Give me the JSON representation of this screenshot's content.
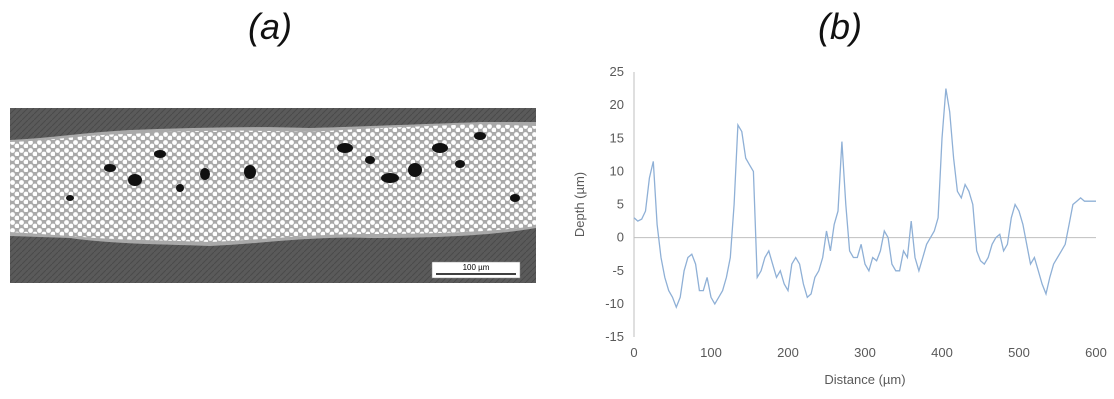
{
  "panels": {
    "a": {
      "label": "(a)",
      "scale_bar_text": "100 µm"
    },
    "b": {
      "label": "(b)"
    }
  },
  "colors": {
    "line": "#8fb0d6",
    "axis": "#bfbfbf",
    "tick_text": "#595959",
    "substrate": "#5a5a5a",
    "matrix": "#a9a9a9",
    "fiber": "#ffffff",
    "void": "#111111"
  },
  "chart_data": {
    "type": "line",
    "title": "",
    "xlabel": "Distance (µm)",
    "ylabel": "Depth (µm)",
    "xlim": [
      0,
      600
    ],
    "ylim": [
      -15,
      25
    ],
    "xticks": [
      0,
      100,
      200,
      300,
      400,
      500,
      600
    ],
    "yticks": [
      -15,
      -10,
      -5,
      0,
      5,
      10,
      15,
      20,
      25
    ],
    "grid": false,
    "legend": "none",
    "x": [
      0,
      5,
      10,
      15,
      20,
      25,
      30,
      35,
      40,
      45,
      50,
      55,
      60,
      65,
      70,
      75,
      80,
      85,
      90,
      95,
      100,
      105,
      110,
      115,
      120,
      125,
      130,
      135,
      140,
      145,
      150,
      155,
      160,
      165,
      170,
      175,
      180,
      185,
      190,
      195,
      200,
      205,
      210,
      215,
      220,
      225,
      230,
      235,
      240,
      245,
      250,
      255,
      260,
      265,
      270,
      275,
      280,
      285,
      290,
      295,
      300,
      305,
      310,
      315,
      320,
      325,
      330,
      335,
      340,
      345,
      350,
      355,
      360,
      365,
      370,
      375,
      380,
      385,
      390,
      395,
      400,
      405,
      410,
      415,
      420,
      425,
      430,
      435,
      440,
      445,
      450,
      455,
      460,
      465,
      470,
      475,
      480,
      485,
      490,
      495,
      500,
      505,
      510,
      515,
      520,
      525,
      530,
      535,
      540,
      545,
      550,
      555,
      560,
      565,
      570,
      575,
      580,
      585,
      590,
      595,
      600
    ],
    "series": [
      {
        "values": [
          3,
          2.5,
          2.8,
          4,
          9,
          11.5,
          2,
          -3,
          -6,
          -8,
          -9,
          -10.5,
          -9,
          -5,
          -3,
          -2.5,
          -4,
          -8,
          -8,
          -6,
          -9,
          -10,
          -9,
          -8,
          -6,
          -3,
          5,
          17,
          16,
          12,
          11,
          10,
          -6,
          -5,
          -3,
          -2,
          -4,
          -6,
          -5,
          -7,
          -8,
          -4,
          -3,
          -4,
          -7,
          -9,
          -8.5,
          -6,
          -5,
          -3,
          1,
          -2,
          2,
          4,
          14.5,
          5,
          -2,
          -3,
          -3,
          -1,
          -4,
          -5,
          -3,
          -3.5,
          -2,
          1,
          0,
          -4,
          -5,
          -5,
          -2,
          -3,
          2.5,
          -3,
          -5,
          -3,
          -1,
          0,
          1,
          3,
          15,
          22.5,
          19,
          12,
          7,
          6,
          8,
          7,
          5,
          -2,
          -3.5,
          -4,
          -3,
          -1,
          0,
          0.5,
          -2,
          -1,
          3,
          5,
          4,
          2,
          -1,
          -4,
          -3,
          -5,
          -7,
          -8.5,
          -6,
          -4,
          -3,
          -2,
          -1,
          2,
          5,
          5.5,
          6,
          5.5,
          5.5,
          5.5,
          5.5
        ]
      }
    ]
  }
}
